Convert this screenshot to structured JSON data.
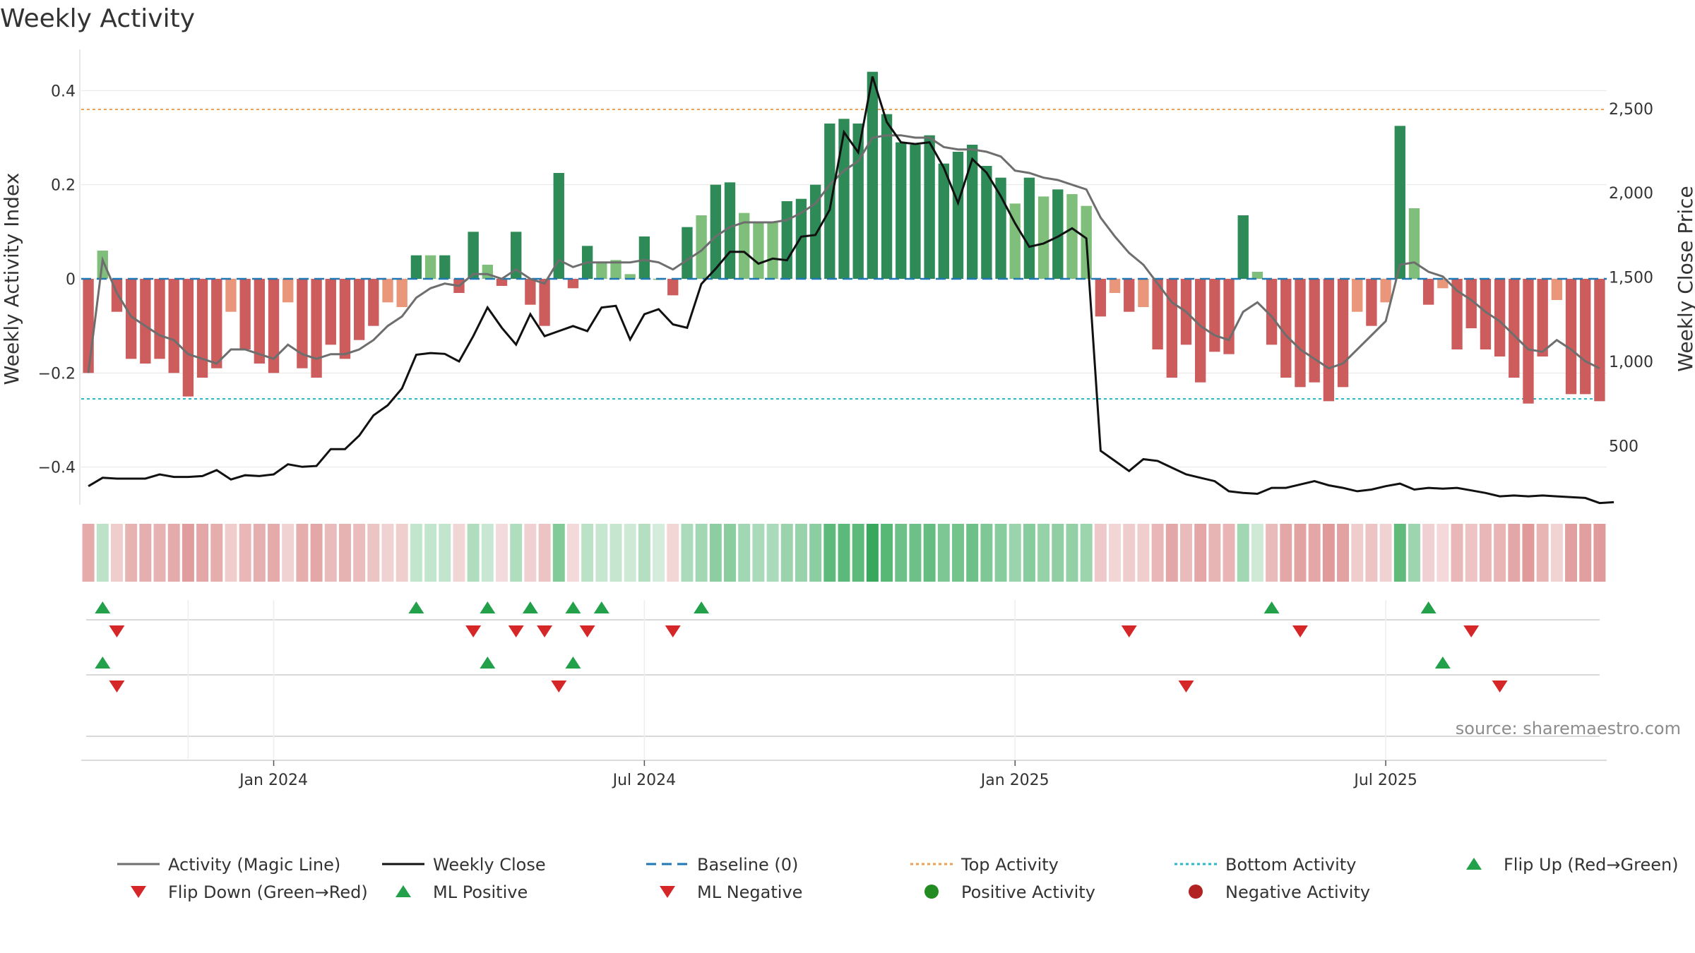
{
  "chart_data": {
    "type": "bar",
    "title": "Weekly Activity",
    "ylabel": "Weekly Activity Index",
    "y2label": "Weekly Close Price",
    "ylim": [
      -0.48,
      0.48
    ],
    "y2lim": [
      150,
      2830
    ],
    "yticks": [
      {
        "v": 0.4,
        "label": "0.4"
      },
      {
        "v": 0.2,
        "label": "0.2"
      },
      {
        "v": 0,
        "label": "0"
      },
      {
        "v": -0.2,
        "label": "−0.2"
      },
      {
        "v": -0.4,
        "label": "−0.4"
      }
    ],
    "y2ticks": [
      {
        "v": 2500,
        "label": "2,500"
      },
      {
        "v": 2000,
        "label": "2,000"
      },
      {
        "v": 1500,
        "label": "1,500"
      },
      {
        "v": 1000,
        "label": "1,000"
      },
      {
        "v": 500,
        "label": "500"
      }
    ],
    "x_start_date": "2023-10-06",
    "x_interval_days": 7,
    "xticks": [
      {
        "i": 13,
        "label": "Jan 2024"
      },
      {
        "i": 39,
        "label": "Jul 2024"
      },
      {
        "i": 65,
        "label": "Jan 2025"
      },
      {
        "i": 91,
        "label": "Jul 2025"
      }
    ],
    "activity": [
      -0.2,
      0.06,
      -0.07,
      -0.17,
      -0.18,
      -0.17,
      -0.2,
      -0.25,
      -0.21,
      -0.19,
      -0.07,
      -0.15,
      -0.18,
      -0.2,
      -0.05,
      -0.19,
      -0.21,
      -0.14,
      -0.17,
      -0.13,
      -0.1,
      -0.05,
      -0.06,
      0.05,
      0.05,
      0.05,
      -0.03,
      0.1,
      0.03,
      -0.015,
      0.1,
      -0.055,
      -0.1,
      0.225,
      -0.02,
      0.07,
      0.035,
      0.04,
      0.01,
      0.09,
      0.0,
      -0.035,
      0.11,
      0.135,
      0.2,
      0.205,
      0.14,
      0.12,
      0.12,
      0.165,
      0.17,
      0.2,
      0.33,
      0.34,
      0.33,
      0.44,
      0.35,
      0.29,
      0.285,
      0.305,
      0.245,
      0.27,
      0.285,
      0.24,
      0.215,
      0.16,
      0.215,
      0.175,
      0.19,
      0.18,
      0.155,
      -0.08,
      -0.03,
      -0.07,
      -0.06,
      -0.15,
      -0.21,
      -0.14,
      -0.22,
      -0.155,
      -0.16,
      0.135,
      0.015,
      -0.14,
      -0.21,
      -0.23,
      -0.22,
      -0.26,
      -0.23,
      -0.07,
      -0.1,
      -0.05,
      0.325,
      0.15,
      -0.055,
      -0.02,
      -0.15,
      -0.105,
      -0.15,
      -0.165,
      -0.21,
      -0.265,
      -0.165,
      -0.045,
      -0.245,
      -0.245,
      -0.26
    ],
    "magic_line": [
      -0.2,
      0.04,
      -0.03,
      -0.08,
      -0.1,
      -0.12,
      -0.13,
      -0.16,
      -0.17,
      -0.18,
      -0.15,
      -0.15,
      -0.16,
      -0.17,
      -0.14,
      -0.16,
      -0.17,
      -0.16,
      -0.16,
      -0.15,
      -0.13,
      -0.1,
      -0.08,
      -0.04,
      -0.02,
      -0.01,
      -0.015,
      0.01,
      0.01,
      0.0,
      0.02,
      0.0,
      -0.01,
      0.04,
      0.025,
      0.035,
      0.035,
      0.035,
      0.035,
      0.04,
      0.035,
      0.02,
      0.04,
      0.06,
      0.09,
      0.11,
      0.12,
      0.12,
      0.12,
      0.125,
      0.14,
      0.16,
      0.2,
      0.23,
      0.25,
      0.3,
      0.305,
      0.305,
      0.3,
      0.3,
      0.28,
      0.275,
      0.275,
      0.27,
      0.26,
      0.23,
      0.225,
      0.215,
      0.21,
      0.2,
      0.19,
      0.13,
      0.09,
      0.055,
      0.03,
      -0.01,
      -0.05,
      -0.07,
      -0.1,
      -0.12,
      -0.13,
      -0.07,
      -0.05,
      -0.08,
      -0.12,
      -0.15,
      -0.17,
      -0.19,
      -0.18,
      -0.15,
      -0.12,
      -0.09,
      0.03,
      0.035,
      0.015,
      0.005,
      -0.025,
      -0.045,
      -0.07,
      -0.09,
      -0.12,
      -0.15,
      -0.155,
      -0.13,
      -0.15,
      -0.175,
      -0.19
    ],
    "weekly_close": [
      260,
      310,
      305,
      305,
      305,
      330,
      315,
      315,
      320,
      355,
      300,
      325,
      320,
      330,
      390,
      375,
      380,
      480,
      480,
      560,
      680,
      740,
      840,
      1040,
      1050,
      1045,
      1000,
      1150,
      1320,
      1200,
      1100,
      1280,
      1150,
      1180,
      1210,
      1180,
      1320,
      1330,
      1130,
      1280,
      1310,
      1220,
      1200,
      1460,
      1550,
      1650,
      1650,
      1580,
      1610,
      1600,
      1740,
      1750,
      1900,
      2360,
      2240,
      2690,
      2420,
      2300,
      2290,
      2300,
      2150,
      1940,
      2200,
      2120,
      1980,
      1820,
      1680,
      1700,
      1740,
      1790,
      1730,
      470,
      410,
      350,
      420,
      410,
      370,
      330,
      310,
      290,
      230,
      220,
      215,
      250,
      250,
      270,
      290,
      265,
      250,
      230,
      240,
      260,
      275,
      240,
      250,
      245,
      250,
      235,
      220,
      200,
      205,
      200,
      205,
      200,
      195,
      190,
      160,
      165
    ],
    "top_activity": 0.36,
    "bottom_activity": -0.255,
    "baseline": 0,
    "flip_up": [
      1,
      23,
      28,
      31,
      34,
      36,
      43,
      83,
      94
    ],
    "flip_down": [
      2,
      27,
      30,
      32,
      35,
      41,
      73,
      85,
      97
    ],
    "ml_positive": [
      1,
      28,
      34,
      95
    ],
    "ml_negative": [
      2,
      33,
      77,
      99
    ],
    "colors": {
      "strong_positive": "#2e8b57",
      "weak_positive": "#7fbf7b",
      "strong_negative": "#cd5c5c",
      "weak_negative": "#e9967a",
      "magic_line": "#6e6e6e",
      "weekly_close": "#111111",
      "baseline": "#1f77b4",
      "top_activity": "#f0a050",
      "bottom_activity": "#22b8cf",
      "flip_up": "#22a04a",
      "flip_down": "#d62728",
      "positive_dot": "#228b22",
      "negative_dot": "#b22222"
    },
    "legend_placement": "bottom",
    "legend": [
      {
        "label": "Activity (Magic Line)",
        "marker": "line-solid-gray"
      },
      {
        "label": "Weekly Close",
        "marker": "line-solid-black"
      },
      {
        "label": "Baseline (0)",
        "marker": "line-dashed-blue"
      },
      {
        "label": "Top Activity",
        "marker": "line-dotted-orange"
      },
      {
        "label": "Bottom Activity",
        "marker": "line-dotted-cyan"
      },
      {
        "label": "Flip Up (Red→Green)",
        "marker": "triangle-up-green"
      },
      {
        "label": "Flip Down (Green→Red)",
        "marker": "triangle-down-red"
      },
      {
        "label": "ML Positive",
        "marker": "triangle-up-green"
      },
      {
        "label": "ML Negative",
        "marker": "triangle-down-red"
      },
      {
        "label": "Positive Activity",
        "marker": "dot-green"
      },
      {
        "label": "Negative Activity",
        "marker": "dot-red"
      }
    ],
    "source": "source: sharemaestro.com"
  }
}
